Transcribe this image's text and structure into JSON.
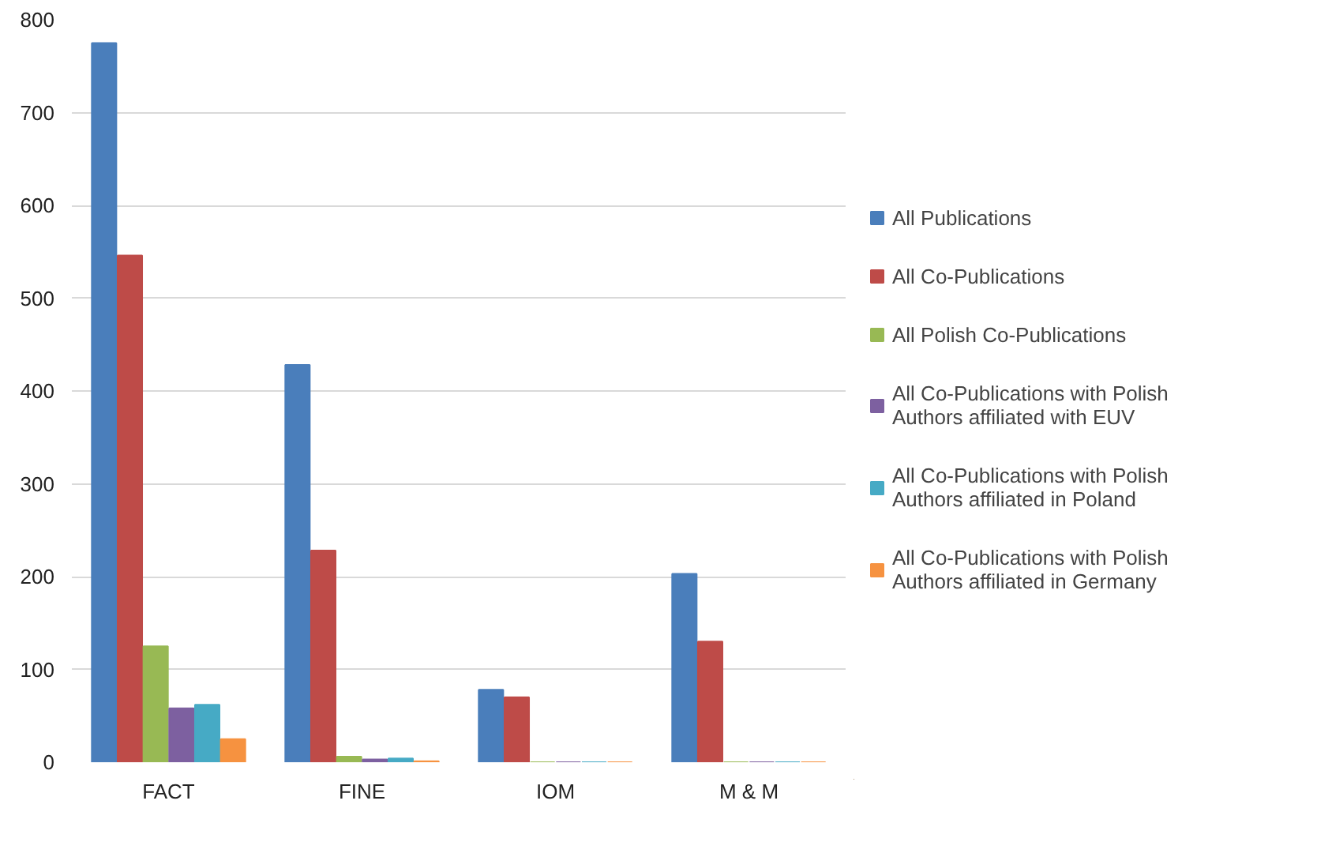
{
  "chart_data": {
    "type": "bar",
    "categories": [
      "FACT",
      "FINE",
      "IOM",
      "M & M"
    ],
    "series": [
      {
        "name": "All Publications",
        "color": "#4a7ebb",
        "values": [
          775,
          428,
          78,
          203
        ]
      },
      {
        "name": "All Co-Publications",
        "color": "#be4b48",
        "values": [
          546,
          228,
          70,
          130
        ]
      },
      {
        "name": "All Polish Co-Publications",
        "color": "#98b954",
        "values": [
          125,
          6,
          0,
          0
        ]
      },
      {
        "name": "All Co-Publications with Polish Authors affiliated with EUV",
        "color": "#7d60a0",
        "values": [
          58,
          3,
          0,
          0
        ]
      },
      {
        "name": "All Co-Publications with Polish Authors affiliated in Poland",
        "color": "#46aac5",
        "values": [
          62,
          4,
          0,
          0
        ]
      },
      {
        "name": "All Co-Publications with Polish Authors affiliated in Germany",
        "color": "#f69240",
        "values": [
          25,
          1,
          0,
          0
        ]
      }
    ],
    "ylim": [
      0,
      800
    ],
    "yticks": [
      0,
      100,
      200,
      300,
      400,
      500,
      600,
      700,
      800
    ],
    "grid": "y",
    "legend": "right"
  }
}
